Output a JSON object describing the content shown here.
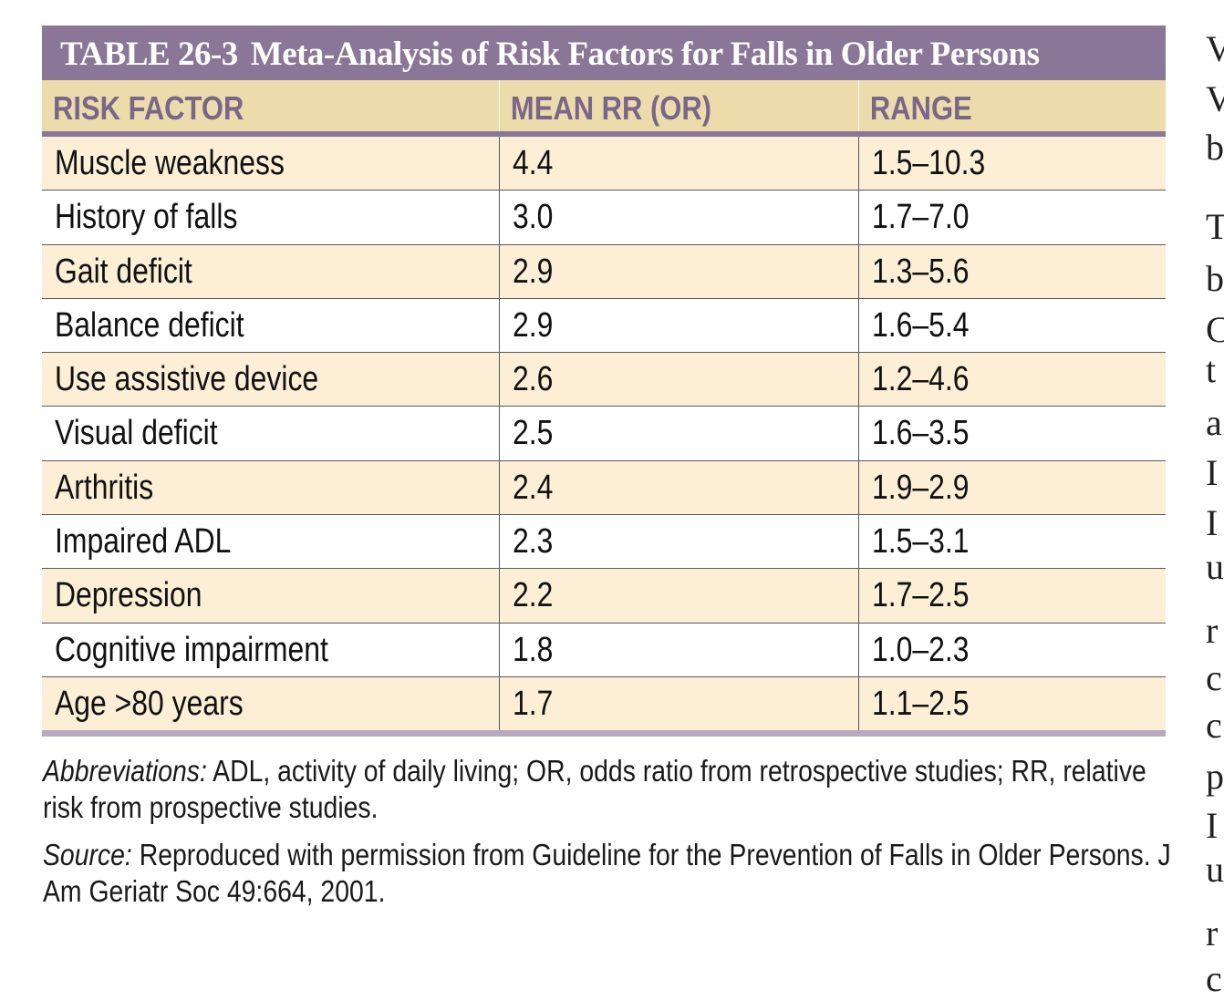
{
  "table": {
    "number": "TABLE 26-3",
    "title": "Meta-Analysis of Risk Factors for Falls in Older Persons",
    "headers": [
      "RISK FACTOR",
      "MEAN RR (OR)",
      "RANGE"
    ],
    "rows": [
      {
        "factor": "Muscle weakness",
        "mean": "4.4",
        "range": "1.5–10.3"
      },
      {
        "factor": "History of falls",
        "mean": "3.0",
        "range": "1.7–7.0"
      },
      {
        "factor": "Gait deficit",
        "mean": "2.9",
        "range": "1.3–5.6"
      },
      {
        "factor": "Balance deficit",
        "mean": "2.9",
        "range": "1.6–5.4"
      },
      {
        "factor": "Use assistive device",
        "mean": "2.6",
        "range": "1.2–4.6"
      },
      {
        "factor": "Visual deficit",
        "mean": "2.5",
        "range": "1.6–3.5"
      },
      {
        "factor": "Arthritis",
        "mean": "2.4",
        "range": "1.9–2.9"
      },
      {
        "factor": "Impaired ADL",
        "mean": "2.3",
        "range": "1.5–3.1"
      },
      {
        "factor": "Depression",
        "mean": "2.2",
        "range": "1.7–2.5"
      },
      {
        "factor": "Cognitive impairment",
        "mean": "1.8",
        "range": "1.0–2.3"
      },
      {
        "factor": "Age >80 years",
        "mean": "1.7",
        "range": "1.1–2.5"
      }
    ]
  },
  "notes": {
    "abbreviations_label": "Abbreviations:",
    "abbreviations_text": " ADL, activity of daily living; OR, odds ratio from retrospective studies; RR, relative risk from prospective studies.",
    "source_label": "Source:",
    "source_text": " Reproduced with permission from Guideline for the Prevention of Falls in Older Persons. J Am Geriatr Soc 49:664, 2001."
  },
  "cropped_text_edge": [
    "V",
    "V",
    "b",
    "T",
    "b",
    "C",
    "t",
    "a",
    "I",
    "I",
    "u",
    "r",
    "c",
    "c",
    "p",
    "I",
    "u",
    "r",
    "c"
  ],
  "colors": {
    "title_bar": "#8a7697",
    "header_bg": "#ecdcab",
    "header_text": "#7a6689",
    "row_shade": "#fcefd6"
  }
}
